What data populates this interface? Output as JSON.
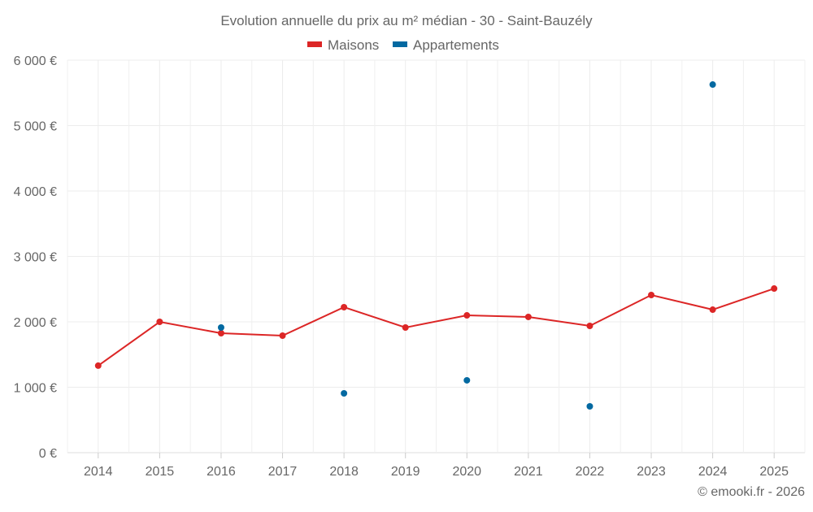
{
  "chart_data": {
    "type": "line",
    "title": "Evolution annuelle du prix au m² médian - 30 - Saint-Bauzély",
    "xlabel": "",
    "ylabel": "",
    "categories": [
      "2014",
      "2015",
      "2016",
      "2017",
      "2018",
      "2019",
      "2020",
      "2021",
      "2022",
      "2023",
      "2024",
      "2025"
    ],
    "ylim": [
      0,
      6000
    ],
    "yticks": [
      0,
      1000,
      2000,
      3000,
      4000,
      5000,
      6000
    ],
    "ytick_labels": [
      "0 €",
      "1 000 €",
      "2 000 €",
      "3 000 €",
      "4 000 €",
      "5 000 €",
      "6 000 €"
    ],
    "grid": true,
    "legend_position": "top-center",
    "series": [
      {
        "name": "Maisons",
        "color": "#dc2626",
        "show_line": true,
        "values": [
          1330,
          2000,
          1826,
          1789,
          2224,
          1913,
          2099,
          2075,
          1938,
          2410,
          2186,
          2509
        ]
      },
      {
        "name": "Appartements",
        "color": "#0369a1",
        "show_line": false,
        "values": [
          null,
          null,
          1913,
          null,
          907,
          null,
          1106,
          null,
          708,
          null,
          5627,
          null
        ]
      }
    ]
  },
  "credit": "© emooki.fr - 2026"
}
